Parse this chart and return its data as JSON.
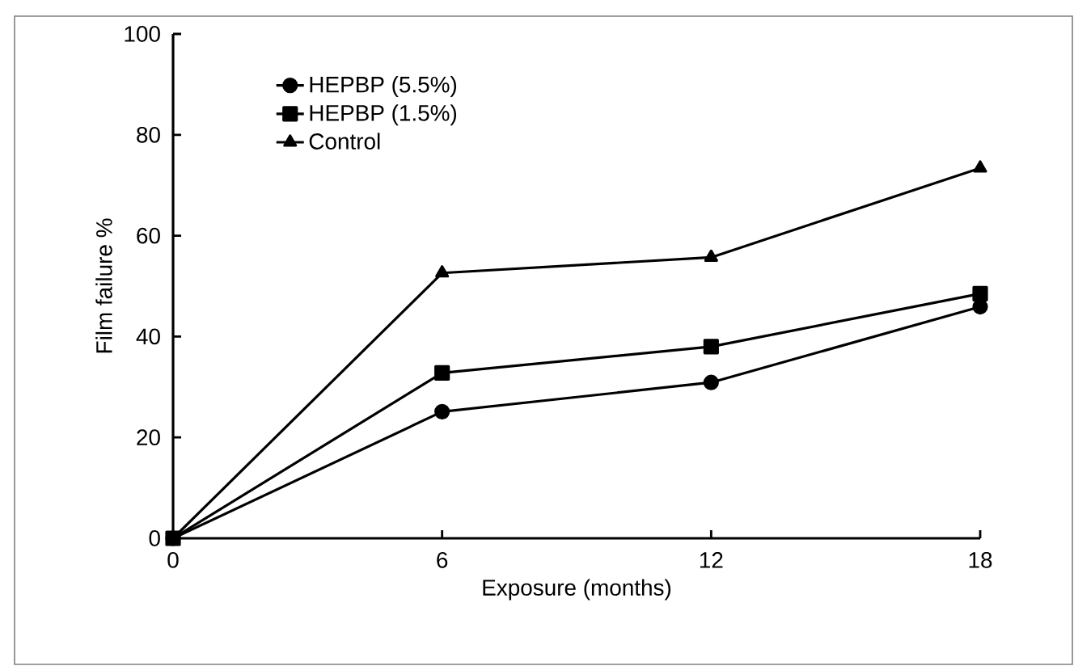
{
  "chart_data": {
    "type": "line",
    "xlabel": "Exposure (months)",
    "ylabel": "Film failure %",
    "x": [
      0,
      6,
      12,
      18
    ],
    "xlim": [
      0,
      18
    ],
    "xticks": [
      0,
      6,
      12,
      18
    ],
    "ylim": [
      0,
      100
    ],
    "yticks": [
      0,
      20,
      40,
      60,
      80,
      100
    ],
    "legend": "top left",
    "grid": false,
    "line_style": "solid",
    "series": [
      {
        "name": "HEPBP (5.5%)",
        "color": "#000000",
        "marker": "circle",
        "values": [
          0,
          25.1,
          30.9,
          45.9
        ]
      },
      {
        "name": "HEPBP (1.5%)",
        "color": "#000000",
        "marker": "square",
        "values": [
          0,
          32.8,
          38,
          48.5
        ]
      },
      {
        "name": "Control",
        "color": "#000000",
        "marker": "triangle",
        "values": [
          0,
          52.6,
          55.7,
          73.4
        ]
      }
    ]
  }
}
